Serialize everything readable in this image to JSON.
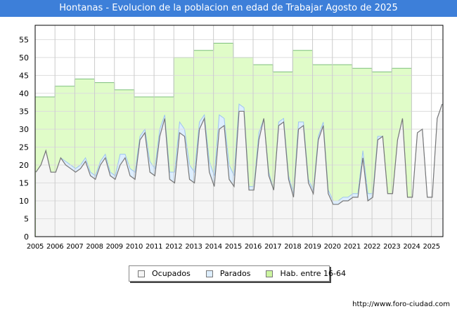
{
  "title": "Hontanas - Evolucion de la poblacion en edad de Trabajar Agosto de 2025",
  "watermark": "FORO-CIUDAD.COM",
  "url": "http://www.foro-ciudad.com",
  "colors": {
    "ocupados": "#f5f5f5",
    "parados": "#ddeeff",
    "hab": "#e0fcc8",
    "title_bar": "#3d7fd9"
  },
  "chart_data": {
    "type": "area",
    "title": "Hontanas - Evolucion de la poblacion en edad de Trabajar Agosto de 2025",
    "xlabel": "",
    "ylabel": "",
    "ylim": [
      0,
      59
    ],
    "xlim": [
      2005,
      2025.58
    ],
    "yticks": [
      0,
      5,
      10,
      15,
      20,
      25,
      30,
      35,
      40,
      45,
      50,
      55
    ],
    "xticks": [
      2005,
      2006,
      2007,
      2008,
      2009,
      2010,
      2011,
      2012,
      2013,
      2014,
      2015,
      2016,
      2017,
      2018,
      2019,
      2020,
      2021,
      2022,
      2023,
      2024,
      2025
    ],
    "grid": true,
    "legend": {
      "position": "bottom",
      "entries": [
        "Ocupados",
        "Parados",
        "Hab. entre 16-64"
      ]
    },
    "hab_years": [
      2005,
      2006,
      2007,
      2008,
      2009,
      2010,
      2011,
      2012,
      2013,
      2014,
      2015,
      2016,
      2017,
      2018,
      2019,
      2020,
      2021,
      2022,
      2023
    ],
    "hab_values": [
      39,
      42,
      44,
      43,
      41,
      39,
      39,
      50,
      52,
      54,
      50,
      48,
      46,
      52,
      48,
      48,
      47,
      46,
      47
    ],
    "ocupados": [
      18,
      20,
      24,
      18,
      18,
      22,
      20,
      19,
      18,
      19,
      21,
      17,
      16,
      20,
      22,
      17,
      16,
      20,
      22,
      17,
      16,
      27,
      29,
      18,
      17,
      28,
      33,
      16,
      15,
      29,
      28,
      16,
      15,
      30,
      33,
      18,
      14,
      30,
      31,
      16,
      14,
      35,
      35,
      13,
      13,
      27,
      33,
      17,
      13,
      31,
      32,
      16,
      11,
      30,
      31,
      15,
      12,
      27,
      31,
      12,
      9,
      9,
      10,
      10,
      11,
      11,
      22,
      10,
      11,
      27,
      28,
      12,
      12,
      27,
      33,
      11,
      11,
      29,
      30,
      11,
      11,
      33,
      37
    ],
    "parados": [
      0,
      0,
      0,
      0,
      0,
      0,
      1,
      1,
      1,
      1,
      1,
      1,
      1,
      1,
      1,
      1,
      1,
      3,
      1,
      2,
      2,
      1,
      1,
      3,
      2,
      2,
      1,
      2,
      3,
      3,
      2,
      4,
      3,
      2,
      1,
      3,
      3,
      4,
      2,
      4,
      3,
      2,
      1,
      1,
      1,
      2,
      0,
      1,
      0,
      1,
      1,
      1,
      1,
      2,
      1,
      1,
      1,
      1,
      1,
      1,
      1,
      1,
      1,
      1,
      1,
      1,
      2,
      2,
      1,
      1,
      0,
      0,
      0,
      0,
      0,
      0,
      0,
      0,
      0
    ]
  }
}
